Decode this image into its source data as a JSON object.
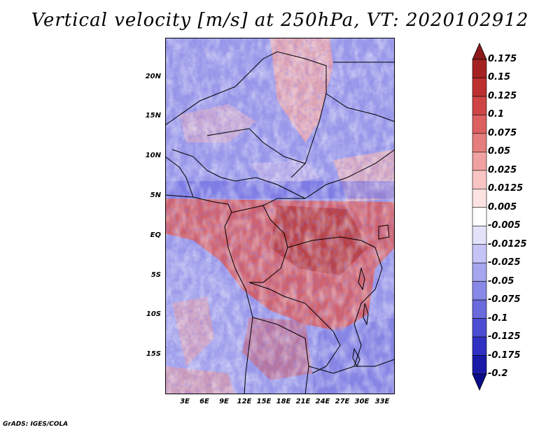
{
  "title": "Vertical velocity [m/s] at 250hPa, VT: 2020102912",
  "credit": "GrADS: IGES/COLA",
  "map": {
    "y_ticks": [
      "20N",
      "15N",
      "10N",
      "5N",
      "EQ",
      "5S",
      "10S",
      "15S"
    ],
    "x_ticks": [
      "3E",
      "6E",
      "9E",
      "12E",
      "15E",
      "18E",
      "21E",
      "24E",
      "27E",
      "30E",
      "33E"
    ]
  },
  "colorbar": {
    "labels": [
      "0.175",
      "0.15",
      "0.125",
      "0.1",
      "0.075",
      "0.05",
      "0.025",
      "0.0125",
      "0.005",
      "-0.005",
      "-0.0125",
      "-0.025",
      "-0.05",
      "-0.075",
      "-0.1",
      "-0.125",
      "-0.175",
      "-0.2"
    ],
    "colors": [
      "#8b1a1a",
      "#a52222",
      "#bc3030",
      "#cf4545",
      "#dc6060",
      "#e67e7e",
      "#f0a0a0",
      "#f8c4c4",
      "#fde2e2",
      "#ffffff",
      "#e2e2fb",
      "#c4c4f6",
      "#a6a6ee",
      "#8888e6",
      "#6a6add",
      "#4c4cd2",
      "#3030c2",
      "#1a1aa8",
      "#0c0c88"
    ]
  }
}
